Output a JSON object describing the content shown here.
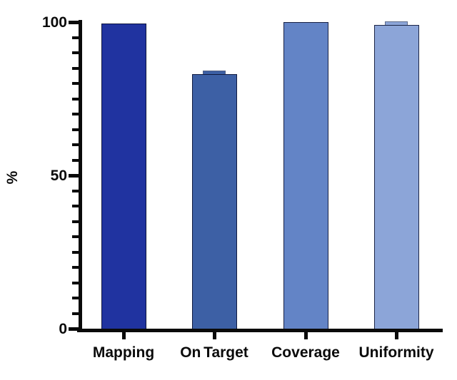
{
  "chart_data": {
    "type": "bar",
    "title": "",
    "xlabel": "",
    "ylabel": "%",
    "ylim": [
      0,
      100
    ],
    "yticks_major": [
      0,
      50,
      100
    ],
    "ytick_minor_step": 5,
    "grid": false,
    "legend": "none",
    "background": "#ffffff",
    "axis_color": "#0a0a0a",
    "categories": [
      "Mapping",
      "On Target",
      "Coverage",
      "Uniformity"
    ],
    "values": [
      99.5,
      83,
      100,
      99
    ],
    "bar_colors": [
      "#2033a0",
      "#3d60a5",
      "#6384c6",
      "#8ca5d8"
    ],
    "error_caps": [
      false,
      true,
      false,
      true
    ]
  }
}
